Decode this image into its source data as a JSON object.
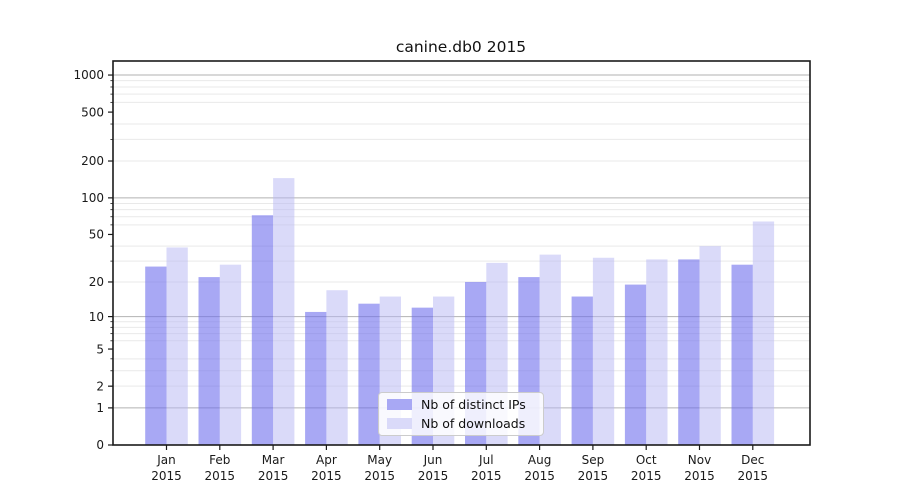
{
  "chart_data": {
    "type": "bar",
    "title": "canine.db0 2015",
    "categories": [
      "Jan",
      "Feb",
      "Mar",
      "Apr",
      "May",
      "Jun",
      "Jul",
      "Aug",
      "Sep",
      "Oct",
      "Nov",
      "Dec"
    ],
    "category_year": "2015",
    "series": [
      {
        "name": "Nb of distinct IPs",
        "color": "#a8a8f4",
        "fill": "rgba(110,110,237,0.6)",
        "values": [
          27,
          22,
          72,
          11,
          13,
          12,
          20,
          22,
          15,
          19,
          31,
          28
        ]
      },
      {
        "name": "Nb of downloads",
        "color": "#dadaf9",
        "fill": "rgba(181,181,243,0.5)",
        "values": [
          39,
          28,
          145,
          17,
          15,
          15,
          29,
          34,
          32,
          31,
          40,
          64
        ]
      }
    ],
    "xlabel": "",
    "ylabel": "",
    "y_axis": {
      "scale": "log10(1+y)",
      "ticks": [
        0,
        1,
        2,
        5,
        10,
        20,
        50,
        100,
        200,
        500,
        1000
      ],
      "minor_ticks": [
        2,
        3,
        4,
        6,
        7,
        8,
        9,
        20,
        30,
        40,
        60,
        70,
        80,
        90,
        200,
        300,
        400,
        600,
        700,
        800,
        900
      ],
      "ylim": [
        0,
        1300
      ]
    },
    "grid": {
      "on": true,
      "major_color": "#b2b2b2",
      "minor_color": "#e9e9e9"
    },
    "axis_color": "#1a1a1a",
    "text_color": "#1a1a1a",
    "legend": {
      "position": "inside-bottom-center"
    }
  }
}
